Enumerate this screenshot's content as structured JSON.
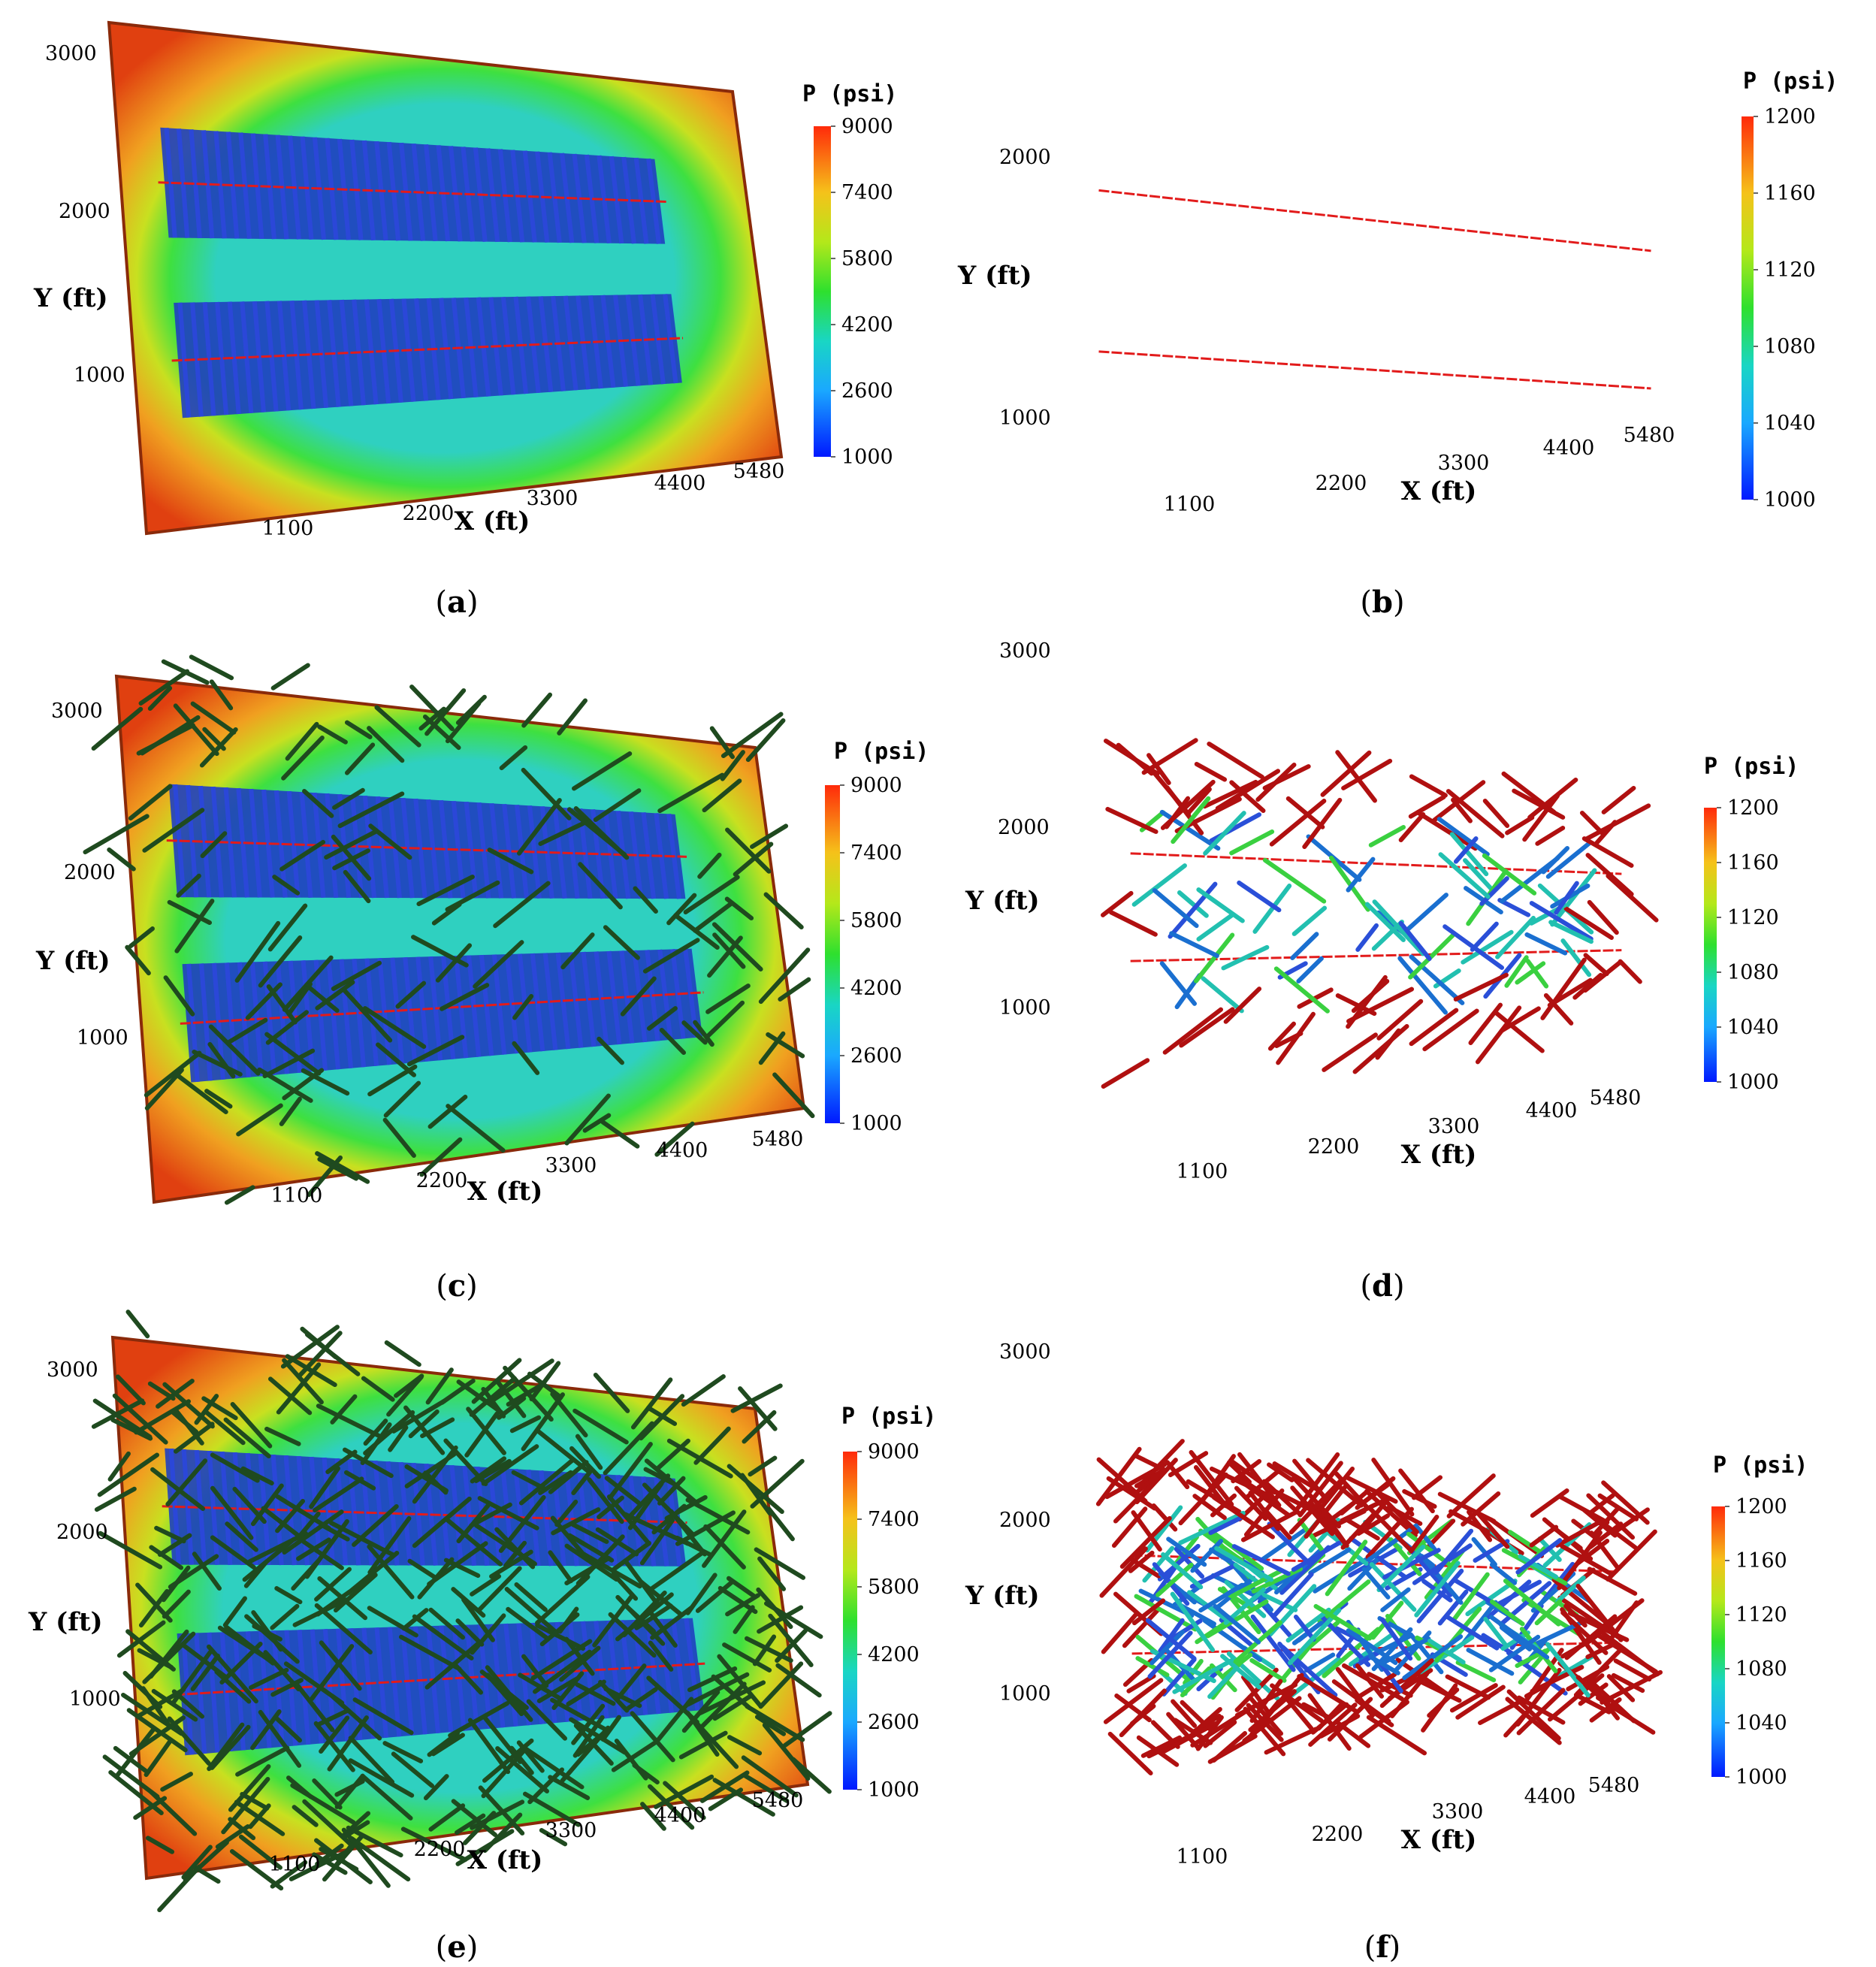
{
  "colors": {
    "well_line": "#e21b1b",
    "fracture_blue": "#1f3fbf",
    "natural_fracture_dark": "#1f4a1f",
    "natural_fracture_red": "#b01010"
  },
  "panels": [
    {
      "id": "a",
      "label_open": "(",
      "label_letter": "a",
      "label_close": ")",
      "axis_x": "X (ft)",
      "axis_y": "Y (ft)",
      "x_ticks": [
        "1100",
        "2200",
        "3300",
        "4400",
        "5480"
      ],
      "y_ticks": [
        "3000",
        "2000",
        "1000"
      ],
      "colorbar": {
        "title": "P (psi)",
        "ticks": [
          "9000",
          "7400",
          "5800",
          "4200",
          "2600",
          "1000"
        ],
        "min": 1000,
        "max": 9000
      },
      "natural_fractures": "none"
    },
    {
      "id": "b",
      "label_open": "(",
      "label_letter": "b",
      "label_close": ")",
      "axis_x": "X (ft)",
      "axis_y": "Y (ft)",
      "x_ticks": [
        "1100",
        "2200",
        "3300",
        "4400",
        "5480"
      ],
      "y_ticks": [
        "2000",
        "1000"
      ],
      "colorbar": {
        "title": "P (psi)",
        "ticks": [
          "1200",
          "1160",
          "1120",
          "1080",
          "1040",
          "1000"
        ],
        "min": 1000,
        "max": 1200
      },
      "natural_fractures": "none"
    },
    {
      "id": "c",
      "label_open": "(",
      "label_letter": "c",
      "label_close": ")",
      "axis_x": "X (ft)",
      "axis_y": "Y (ft)",
      "x_ticks": [
        "1100",
        "2200",
        "3300",
        "4400",
        "5480"
      ],
      "y_ticks": [
        "3000",
        "2000",
        "1000"
      ],
      "colorbar": {
        "title": "P (psi)",
        "ticks": [
          "9000",
          "7400",
          "5800",
          "4200",
          "2600",
          "1000"
        ],
        "min": 1000,
        "max": 9000
      },
      "natural_fractures": "sparse"
    },
    {
      "id": "d",
      "label_open": "(",
      "label_letter": "d",
      "label_close": ")",
      "axis_x": "X (ft)",
      "axis_y": "Y (ft)",
      "x_ticks": [
        "1100",
        "2200",
        "3300",
        "4400",
        "5480"
      ],
      "y_ticks": [
        "3000",
        "2000",
        "1000"
      ],
      "colorbar": {
        "title": "P (psi)",
        "ticks": [
          "1200",
          "1160",
          "1120",
          "1080",
          "1040",
          "1000"
        ],
        "min": 1000,
        "max": 1200
      },
      "natural_fractures": "sparse"
    },
    {
      "id": "e",
      "label_open": "(",
      "label_letter": "e",
      "label_close": ")",
      "axis_x": "X (ft)",
      "axis_y": "Y (ft)",
      "x_ticks": [
        "1100",
        "2200",
        "3300",
        "4400",
        "5480"
      ],
      "y_ticks": [
        "3000",
        "2000",
        "1000"
      ],
      "colorbar": {
        "title": "P (psi)",
        "ticks": [
          "9000",
          "7400",
          "5800",
          "4200",
          "2600",
          "1000"
        ],
        "min": 1000,
        "max": 9000
      },
      "natural_fractures": "dense"
    },
    {
      "id": "f",
      "label_open": "(",
      "label_letter": "f",
      "label_close": ")",
      "axis_x": "X (ft)",
      "axis_y": "Y (ft)",
      "x_ticks": [
        "1100",
        "2200",
        "3300",
        "4400",
        "5480"
      ],
      "y_ticks": [
        "3000",
        "2000",
        "1000"
      ],
      "colorbar": {
        "title": "P (psi)",
        "ticks": [
          "1200",
          "1160",
          "1120",
          "1080",
          "1040",
          "1000"
        ],
        "min": 1000,
        "max": 1200
      },
      "natural_fractures": "dense"
    }
  ]
}
